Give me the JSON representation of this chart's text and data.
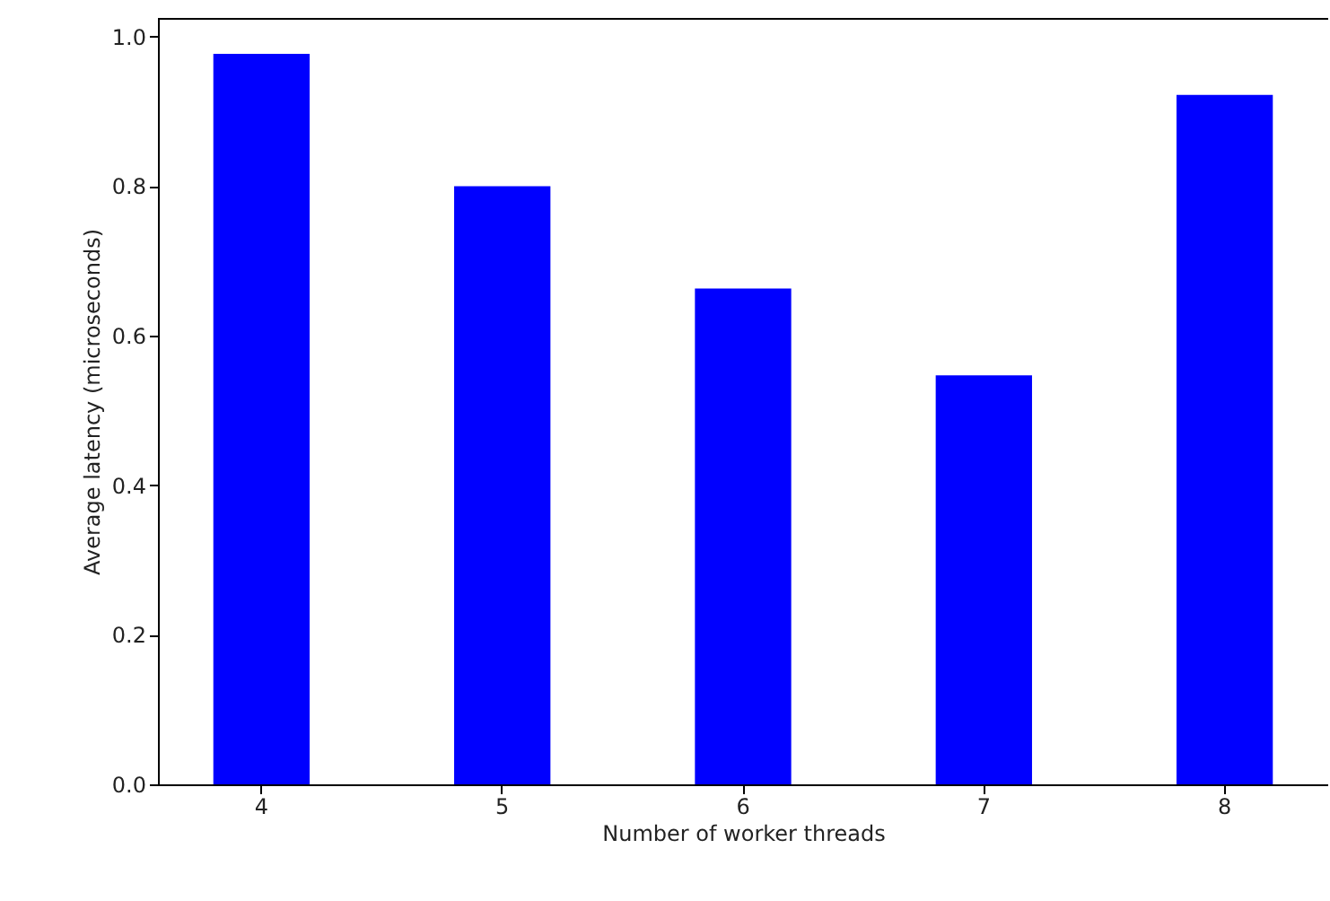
{
  "chart_data": {
    "type": "bar",
    "xlabel": "Number of worker threads",
    "ylabel": "Average latency (microseconds)",
    "categories": [
      "4",
      "5",
      "6",
      "7",
      "8"
    ],
    "values": [
      0.977,
      0.8,
      0.663,
      0.547,
      0.922
    ],
    "color": "#0000ff",
    "ylim": [
      0,
      1.025
    ],
    "yticks": [
      {
        "value": 0,
        "label": "0.0"
      },
      {
        "value": 0.2,
        "label": "0.2"
      },
      {
        "value": 0.4,
        "label": "0.4"
      },
      {
        "value": 0.6,
        "label": "0.6"
      },
      {
        "value": 0.8,
        "label": "0.8"
      },
      {
        "value": 1.0,
        "label": "1.0"
      }
    ],
    "grid": false
  }
}
